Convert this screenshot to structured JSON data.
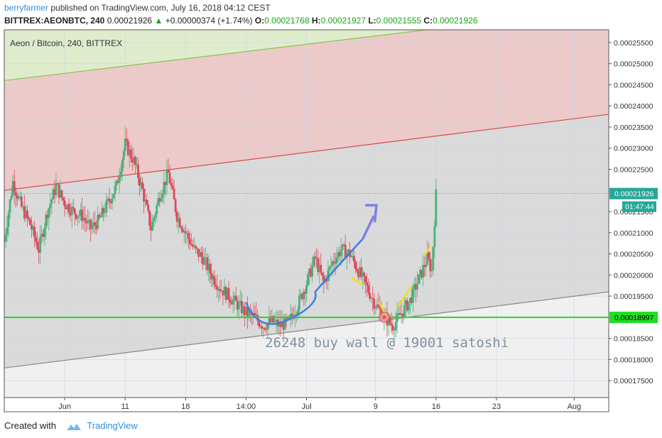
{
  "header": {
    "user": "berryfarmer",
    "published": "published on TradingView.com, July 16, 2018 04:12 CEST",
    "symbol": "BITTREX:AEONBTC, 240",
    "price": "0.00021926",
    "change": "+0.00000374 (+1.74%)",
    "o_label": "O:",
    "o_value": "0.00021768",
    "h_label": "H:",
    "h_value": "0.00021927",
    "l_label": "L:",
    "l_value": "0.00021555",
    "c_label": "C:",
    "c_value": "0.00021926"
  },
  "footer": {
    "created": "Created with",
    "brand": "TradingView"
  },
  "chart_data": {
    "type": "candlestick",
    "title": "Aeon / Bitcoin, 240, BITTREX",
    "ylim": [
      0.000171,
      0.000258
    ],
    "y_ticks": [
      "0.00017500",
      "0.00018000",
      "0.00018500",
      "0.00019000",
      "0.00019500",
      "0.00020000",
      "0.00020500",
      "0.00021000",
      "0.00021500",
      "0.00022000",
      "0.00022500",
      "0.00023000",
      "0.00023500",
      "0.00024000",
      "0.00024500",
      "0.00025000",
      "0.00025500"
    ],
    "x_ticks": [
      {
        "label": "Jun",
        "day": 4
      },
      {
        "label": "11",
        "day": 11
      },
      {
        "label": "18",
        "day": 18
      },
      {
        "label": "14:00",
        "day": 25
      },
      {
        "label": "Jul",
        "day": 32
      },
      {
        "label": "9",
        "day": 40
      },
      {
        "label": "16",
        "day": 47
      },
      {
        "label": "23",
        "day": 54
      },
      {
        "label": "Aug",
        "day": 63
      }
    ],
    "xlim_days": [
      -3,
      67
    ],
    "current_price": {
      "value": 0.00021926,
      "label": "0.00021926",
      "timer": "01:47:44",
      "color": "#26a69a"
    },
    "support": {
      "value": 0.00018997,
      "label": "0.00018997",
      "color": "#22dd22"
    },
    "annotation": "26248 buy wall @ 19001 satoshi",
    "close_path": [
      [
        -3,
        0.000208
      ],
      [
        -2,
        0.000222
      ],
      [
        -1,
        0.000216
      ],
      [
        0,
        0.000212
      ],
      [
        1,
        0.000206
      ],
      [
        2,
        0.000215
      ],
      [
        3,
        0.000221
      ],
      [
        4,
        0.000217
      ],
      [
        5,
        0.000215
      ],
      [
        6,
        0.000214
      ],
      [
        7,
        0.000211
      ],
      [
        8,
        0.000213
      ],
      [
        9,
        0.000217
      ],
      [
        10,
        0.000221
      ],
      [
        11,
        0.000231
      ],
      [
        12,
        0.000227
      ],
      [
        13,
        0.00022
      ],
      [
        14,
        0.000211
      ],
      [
        15,
        0.000219
      ],
      [
        16,
        0.000224
      ],
      [
        17,
        0.000214
      ],
      [
        18,
        0.00021
      ],
      [
        19,
        0.000206
      ],
      [
        20,
        0.000204
      ],
      [
        21,
        0.0002
      ],
      [
        22,
        0.000197
      ],
      [
        23,
        0.000195
      ],
      [
        24,
        0.000193
      ],
      [
        25,
        0.000191
      ],
      [
        26,
        0.00019
      ],
      [
        27,
        0.000188
      ],
      [
        28,
        0.000189
      ],
      [
        29,
        0.000188
      ],
      [
        30,
        0.000189
      ],
      [
        31,
        0.000193
      ],
      [
        32,
        0.000198
      ],
      [
        33,
        0.000204
      ],
      [
        34,
        0.000198
      ],
      [
        35,
        0.000203
      ],
      [
        36,
        0.000206
      ],
      [
        37,
        0.000205
      ],
      [
        38,
        0.000201
      ],
      [
        39,
        0.000197
      ],
      [
        40,
        0.000193
      ],
      [
        41,
        0.00019
      ],
      [
        42,
        0.000188
      ],
      [
        43,
        0.000191
      ],
      [
        44,
        0.000194
      ],
      [
        45,
        0.000199
      ],
      [
        46,
        0.000204
      ],
      [
        46.5,
        0.000201
      ],
      [
        47,
        0.000219
      ]
    ],
    "resistance_channel": {
      "start": [
        -3,
        0.00022
      ],
      "end": [
        67,
        0.000238
      ],
      "color": "#d94b4b"
    },
    "upper_channel": {
      "start": [
        -3,
        0.000246
      ],
      "end": [
        50,
        0.000259
      ],
      "color": "#8bc34a"
    },
    "lower_channel": {
      "start": [
        -3,
        0.000178
      ],
      "end": [
        67,
        0.000196
      ],
      "color": "#888888"
    }
  }
}
